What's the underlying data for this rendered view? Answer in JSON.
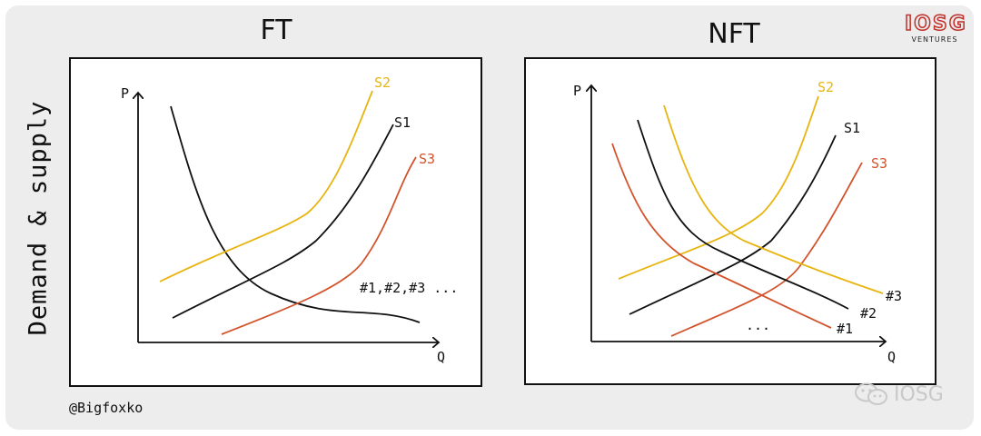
{
  "ylabel": "Demand & supply",
  "credit": "@Bigfoxko",
  "brand": {
    "main": "IOSG",
    "sub": "VENTURES"
  },
  "watermark": {
    "text": "IOSG",
    "icon": "wechat-icon"
  },
  "colors": {
    "black": "#111111",
    "yellow": "#e8b40f",
    "red": "#d2532c"
  },
  "panels": [
    {
      "title": "FT",
      "axis_y": "P",
      "axis_x": "Q",
      "supply_labels": [
        "S2",
        "S1",
        "S3"
      ],
      "demand_label": "#1,#2,#3 ..."
    },
    {
      "title": "NFT",
      "axis_y": "P",
      "axis_x": "Q",
      "supply_labels": [
        "S2",
        "S1",
        "S3"
      ],
      "demand_labels": [
        "#3",
        "#2",
        "#1"
      ],
      "ellipsis": "..."
    }
  ]
}
